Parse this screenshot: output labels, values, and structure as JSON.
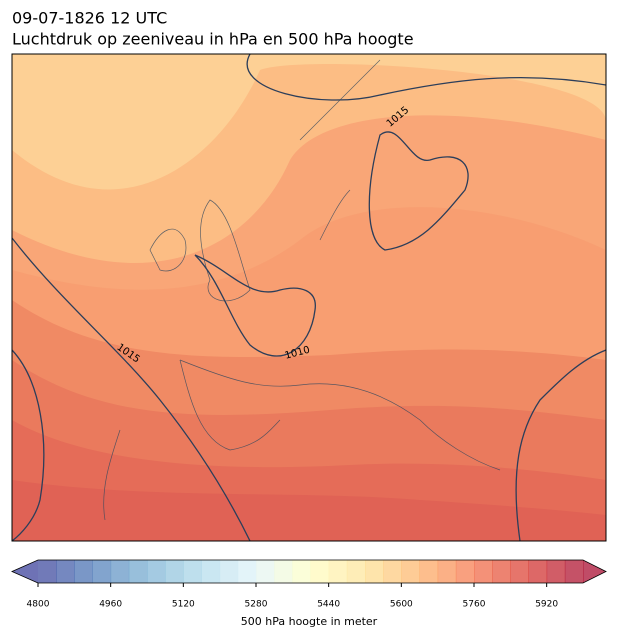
{
  "header": {
    "title": "09-07-1826 12 UTC",
    "subtitle": "Luchtdruk op zeeniveau in hPa en 500 hPa hoogte"
  },
  "map": {
    "isobar_labels": [
      1015,
      1015,
      1010
    ]
  },
  "colorbar": {
    "label": "500 hPa hoogte in meter",
    "colormap": "RdYlBu_r",
    "opacity": 0.7,
    "lim": [
      4800,
      6000
    ],
    "step": 40,
    "ticks": [
      4800,
      4960,
      5120,
      5280,
      5440,
      5600,
      5760,
      5920
    ]
  }
}
